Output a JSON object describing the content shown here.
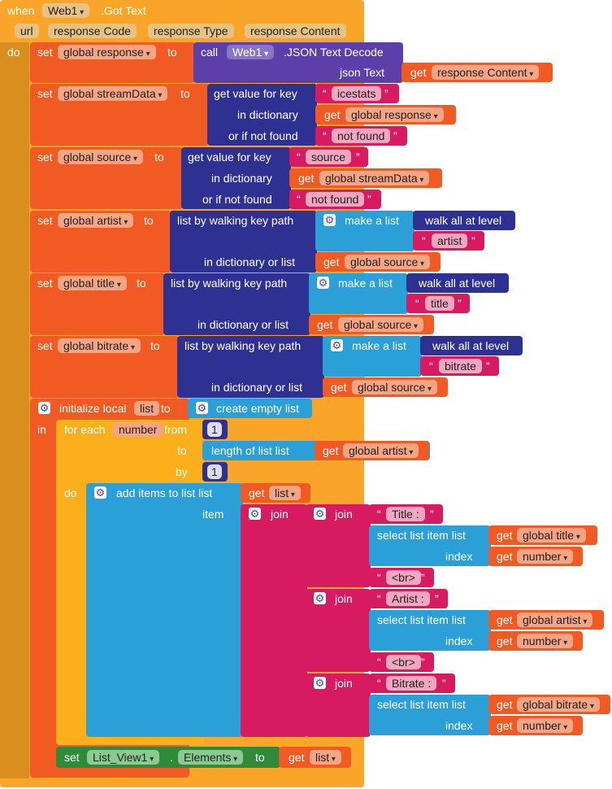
{
  "event": {
    "when": "when",
    "component": "Web1",
    "event_name": ".Got Text",
    "params": [
      "url",
      "response Code",
      "response Type",
      "response Content"
    ],
    "do": "do"
  },
  "kw": {
    "set": "set",
    "to": "to",
    "get": "get",
    "call": "call",
    "get_value_for_key": "get value for key",
    "in_dictionary": "in dictionary",
    "or_if_not_found": "or if not found",
    "walk_key_path": "list by walking key path",
    "in_dict_or_list": "in dictionary or list",
    "make_a_list": "make a list",
    "walk_all": "walk all at level",
    "json_text": "json Text",
    "init_local": "initialize local",
    "in": "in",
    "create_empty_list": "create empty list",
    "for_each": "for each",
    "from": "from",
    "by": "by",
    "do": "do",
    "length_of_list": "length of list  list",
    "add_items": "add items to list   list",
    "item": "item",
    "join": "join",
    "select_list_item": "select list item  list",
    "index": "index",
    "open_q": "“",
    "close_q": "”",
    "dot": "."
  },
  "blocks": {
    "response": {
      "var": "global response",
      "component": "Web1",
      "method": ".JSON Text Decode",
      "arg": "response Content"
    },
    "streamData": {
      "var": "global streamData",
      "key": "icestats",
      "dict": "global response",
      "notfound": "not found"
    },
    "source": {
      "var": "global source",
      "key": "source",
      "dict": "global streamData",
      "notfound": "not found"
    },
    "artist": {
      "var": "global artist",
      "key": "artist",
      "dict": "global source"
    },
    "title": {
      "var": "global title",
      "key": "title",
      "dict": "global source"
    },
    "bitrate": {
      "var": "global bitrate",
      "key": "bitrate",
      "dict": "global source"
    },
    "local": {
      "name": "list"
    },
    "loop": {
      "var": "number",
      "from": "1",
      "to_list": "global artist",
      "by": "1"
    },
    "add": {
      "list": "list"
    },
    "join1": {
      "label": "Title : ",
      "list": "global title",
      "index": "number",
      "sep": "<br>"
    },
    "join2": {
      "label": "Artist : ",
      "list": "global artist",
      "index": "number",
      "sep": "<br>"
    },
    "join3": {
      "label": "Bitrate : ",
      "list": "global bitrate",
      "index": "number"
    },
    "final": {
      "component": "List_View1",
      "property": "Elements",
      "value": "list"
    }
  },
  "icons": {
    "mutator": "gear-icon",
    "dropdown": "chevron-down-icon"
  },
  "colors": {
    "event": "#F8A52A",
    "variables": "#F15A22",
    "dictionaries": "#2E3191",
    "procedures": "#5C3FA8",
    "text": "#D81B60",
    "lists": "#2A9FD8",
    "control": "#FBAF1A",
    "component_setter": "#2E8B3A"
  }
}
